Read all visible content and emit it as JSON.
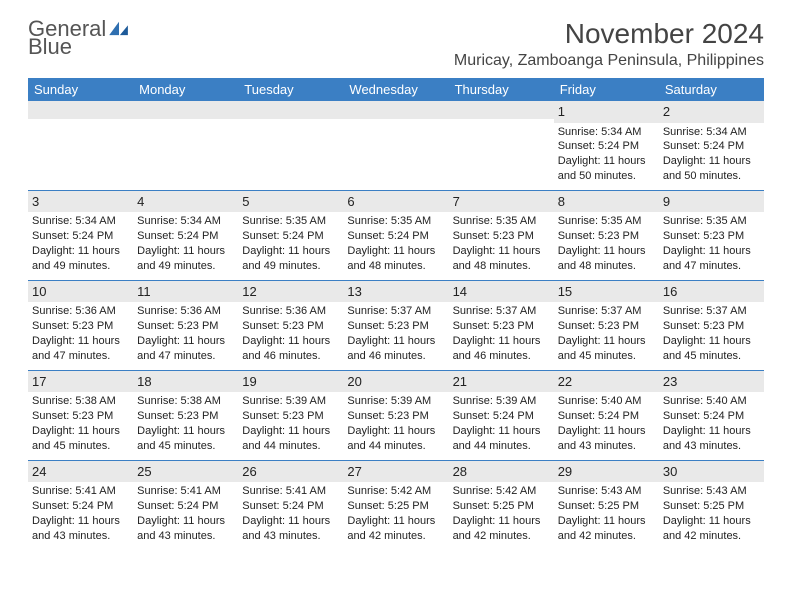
{
  "branding": {
    "logo_line1": "General",
    "logo_line2": "Blue",
    "logo_color_gray": "#6a6a6a",
    "logo_color_blue": "#2f6fb0"
  },
  "header": {
    "title": "November 2024",
    "location": "Muricay, Zamboanga Peninsula, Philippines"
  },
  "styling": {
    "header_bg": "#3b7fc4",
    "header_text": "#ffffff",
    "grid_line": "#3b7fc4",
    "daynum_bg": "#e9e9e9",
    "body_text": "#222222",
    "page_bg": "#ffffff",
    "body_fontsize": 11,
    "title_fontsize": 28,
    "location_fontsize": 16,
    "dayheader_fontsize": 13
  },
  "day_names": [
    "Sunday",
    "Monday",
    "Tuesday",
    "Wednesday",
    "Thursday",
    "Friday",
    "Saturday"
  ],
  "weeks": [
    [
      null,
      null,
      null,
      null,
      null,
      {
        "n": "1",
        "sr": "Sunrise: 5:34 AM",
        "ss": "Sunset: 5:24 PM",
        "dl1": "Daylight: 11 hours",
        "dl2": "and 50 minutes."
      },
      {
        "n": "2",
        "sr": "Sunrise: 5:34 AM",
        "ss": "Sunset: 5:24 PM",
        "dl1": "Daylight: 11 hours",
        "dl2": "and 50 minutes."
      }
    ],
    [
      {
        "n": "3",
        "sr": "Sunrise: 5:34 AM",
        "ss": "Sunset: 5:24 PM",
        "dl1": "Daylight: 11 hours",
        "dl2": "and 49 minutes."
      },
      {
        "n": "4",
        "sr": "Sunrise: 5:34 AM",
        "ss": "Sunset: 5:24 PM",
        "dl1": "Daylight: 11 hours",
        "dl2": "and 49 minutes."
      },
      {
        "n": "5",
        "sr": "Sunrise: 5:35 AM",
        "ss": "Sunset: 5:24 PM",
        "dl1": "Daylight: 11 hours",
        "dl2": "and 49 minutes."
      },
      {
        "n": "6",
        "sr": "Sunrise: 5:35 AM",
        "ss": "Sunset: 5:24 PM",
        "dl1": "Daylight: 11 hours",
        "dl2": "and 48 minutes."
      },
      {
        "n": "7",
        "sr": "Sunrise: 5:35 AM",
        "ss": "Sunset: 5:23 PM",
        "dl1": "Daylight: 11 hours",
        "dl2": "and 48 minutes."
      },
      {
        "n": "8",
        "sr": "Sunrise: 5:35 AM",
        "ss": "Sunset: 5:23 PM",
        "dl1": "Daylight: 11 hours",
        "dl2": "and 48 minutes."
      },
      {
        "n": "9",
        "sr": "Sunrise: 5:35 AM",
        "ss": "Sunset: 5:23 PM",
        "dl1": "Daylight: 11 hours",
        "dl2": "and 47 minutes."
      }
    ],
    [
      {
        "n": "10",
        "sr": "Sunrise: 5:36 AM",
        "ss": "Sunset: 5:23 PM",
        "dl1": "Daylight: 11 hours",
        "dl2": "and 47 minutes."
      },
      {
        "n": "11",
        "sr": "Sunrise: 5:36 AM",
        "ss": "Sunset: 5:23 PM",
        "dl1": "Daylight: 11 hours",
        "dl2": "and 47 minutes."
      },
      {
        "n": "12",
        "sr": "Sunrise: 5:36 AM",
        "ss": "Sunset: 5:23 PM",
        "dl1": "Daylight: 11 hours",
        "dl2": "and 46 minutes."
      },
      {
        "n": "13",
        "sr": "Sunrise: 5:37 AM",
        "ss": "Sunset: 5:23 PM",
        "dl1": "Daylight: 11 hours",
        "dl2": "and 46 minutes."
      },
      {
        "n": "14",
        "sr": "Sunrise: 5:37 AM",
        "ss": "Sunset: 5:23 PM",
        "dl1": "Daylight: 11 hours",
        "dl2": "and 46 minutes."
      },
      {
        "n": "15",
        "sr": "Sunrise: 5:37 AM",
        "ss": "Sunset: 5:23 PM",
        "dl1": "Daylight: 11 hours",
        "dl2": "and 45 minutes."
      },
      {
        "n": "16",
        "sr": "Sunrise: 5:37 AM",
        "ss": "Sunset: 5:23 PM",
        "dl1": "Daylight: 11 hours",
        "dl2": "and 45 minutes."
      }
    ],
    [
      {
        "n": "17",
        "sr": "Sunrise: 5:38 AM",
        "ss": "Sunset: 5:23 PM",
        "dl1": "Daylight: 11 hours",
        "dl2": "and 45 minutes."
      },
      {
        "n": "18",
        "sr": "Sunrise: 5:38 AM",
        "ss": "Sunset: 5:23 PM",
        "dl1": "Daylight: 11 hours",
        "dl2": "and 45 minutes."
      },
      {
        "n": "19",
        "sr": "Sunrise: 5:39 AM",
        "ss": "Sunset: 5:23 PM",
        "dl1": "Daylight: 11 hours",
        "dl2": "and 44 minutes."
      },
      {
        "n": "20",
        "sr": "Sunrise: 5:39 AM",
        "ss": "Sunset: 5:23 PM",
        "dl1": "Daylight: 11 hours",
        "dl2": "and 44 minutes."
      },
      {
        "n": "21",
        "sr": "Sunrise: 5:39 AM",
        "ss": "Sunset: 5:24 PM",
        "dl1": "Daylight: 11 hours",
        "dl2": "and 44 minutes."
      },
      {
        "n": "22",
        "sr": "Sunrise: 5:40 AM",
        "ss": "Sunset: 5:24 PM",
        "dl1": "Daylight: 11 hours",
        "dl2": "and 43 minutes."
      },
      {
        "n": "23",
        "sr": "Sunrise: 5:40 AM",
        "ss": "Sunset: 5:24 PM",
        "dl1": "Daylight: 11 hours",
        "dl2": "and 43 minutes."
      }
    ],
    [
      {
        "n": "24",
        "sr": "Sunrise: 5:41 AM",
        "ss": "Sunset: 5:24 PM",
        "dl1": "Daylight: 11 hours",
        "dl2": "and 43 minutes."
      },
      {
        "n": "25",
        "sr": "Sunrise: 5:41 AM",
        "ss": "Sunset: 5:24 PM",
        "dl1": "Daylight: 11 hours",
        "dl2": "and 43 minutes."
      },
      {
        "n": "26",
        "sr": "Sunrise: 5:41 AM",
        "ss": "Sunset: 5:24 PM",
        "dl1": "Daylight: 11 hours",
        "dl2": "and 43 minutes."
      },
      {
        "n": "27",
        "sr": "Sunrise: 5:42 AM",
        "ss": "Sunset: 5:25 PM",
        "dl1": "Daylight: 11 hours",
        "dl2": "and 42 minutes."
      },
      {
        "n": "28",
        "sr": "Sunrise: 5:42 AM",
        "ss": "Sunset: 5:25 PM",
        "dl1": "Daylight: 11 hours",
        "dl2": "and 42 minutes."
      },
      {
        "n": "29",
        "sr": "Sunrise: 5:43 AM",
        "ss": "Sunset: 5:25 PM",
        "dl1": "Daylight: 11 hours",
        "dl2": "and 42 minutes."
      },
      {
        "n": "30",
        "sr": "Sunrise: 5:43 AM",
        "ss": "Sunset: 5:25 PM",
        "dl1": "Daylight: 11 hours",
        "dl2": "and 42 minutes."
      }
    ]
  ]
}
